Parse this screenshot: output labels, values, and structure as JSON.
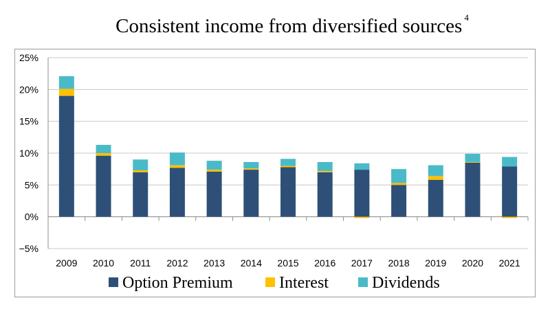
{
  "chart_data": {
    "type": "bar",
    "stacked": true,
    "title": "Consistent income from diversified sources",
    "title_footnote": "4",
    "xlabel": "",
    "ylabel": "",
    "ylim": [
      -5,
      25
    ],
    "ytick_values": [
      -5,
      0,
      5,
      10,
      15,
      20,
      25
    ],
    "ytick_labels": [
      "−5%",
      "0%",
      "5%",
      "10%",
      "15%",
      "20%",
      "25%"
    ],
    "grid": true,
    "legend_position": "bottom",
    "categories": [
      "2009",
      "2010",
      "2011",
      "2012",
      "2013",
      "2014",
      "2015",
      "2016",
      "2017",
      "2018",
      "2019",
      "2020",
      "2021"
    ],
    "series": [
      {
        "name": "Option Premium",
        "color": "#2e5078",
        "values": [
          19.0,
          9.6,
          7.0,
          7.7,
          7.1,
          7.4,
          7.8,
          7.0,
          7.4,
          5.0,
          5.8,
          8.5,
          7.9
        ]
      },
      {
        "name": "Interest",
        "color": "#ffc000",
        "values": [
          1.1,
          0.4,
          0.3,
          0.4,
          0.3,
          0.2,
          0.2,
          0.2,
          -0.2,
          0.3,
          0.6,
          0.1,
          -0.2
        ]
      },
      {
        "name": "Dividends",
        "color": "#4bbac8",
        "values": [
          2.0,
          1.3,
          1.7,
          2.0,
          1.4,
          1.0,
          1.1,
          1.4,
          1.0,
          2.2,
          1.7,
          1.3,
          1.5
        ]
      }
    ]
  }
}
